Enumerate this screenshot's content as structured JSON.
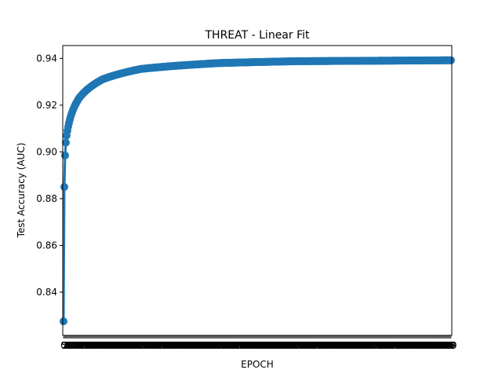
{
  "chart_data": {
    "type": "line",
    "title": "THREAT - Linear Fit",
    "xlabel": "EPOCH",
    "ylabel": "Test Accuracy (AUC)",
    "series_color": "#1f77b4",
    "marker": "circle",
    "grid": false,
    "legend": "none",
    "x_num_epochs": 500,
    "x_tick_labels_first": [
      "0",
      "5"
    ],
    "x_tick_labels_last": "99",
    "x_tick_labels_note": "every epoch has a tick label; labels overlap into a dense band",
    "ylim": [
      0.8215,
      0.9455
    ],
    "y_ticks": [
      "0.84",
      "0.86",
      "0.88",
      "0.90",
      "0.92",
      "0.94"
    ],
    "curve": {
      "start_value": 0.8275,
      "plateau_value": 0.9392,
      "sample_points": [
        {
          "x": 0,
          "y": 0.8275
        },
        {
          "x": 1,
          "y": 0.885
        },
        {
          "x": 2,
          "y": 0.8985
        },
        {
          "x": 3,
          "y": 0.904
        },
        {
          "x": 4,
          "y": 0.907
        },
        {
          "x": 10,
          "y": 0.916
        },
        {
          "x": 20,
          "y": 0.923
        },
        {
          "x": 50,
          "y": 0.931
        },
        {
          "x": 100,
          "y": 0.9355
        },
        {
          "x": 200,
          "y": 0.938
        },
        {
          "x": 300,
          "y": 0.9388
        },
        {
          "x": 400,
          "y": 0.939
        },
        {
          "x": 499,
          "y": 0.9392
        }
      ]
    }
  }
}
